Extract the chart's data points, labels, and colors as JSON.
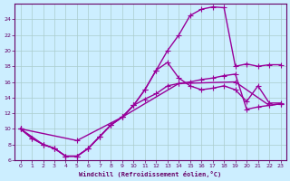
{
  "xlabel": "Windchill (Refroidissement éolien,°C)",
  "bg_color": "#cceeff",
  "line_color": "#990099",
  "grid_color": "#aacccc",
  "axis_color": "#660066",
  "xlim": [
    -0.5,
    23.5
  ],
  "ylim": [
    6,
    26
  ],
  "yticks": [
    6,
    8,
    10,
    12,
    14,
    16,
    18,
    20,
    22,
    24
  ],
  "xticks": [
    0,
    1,
    2,
    3,
    4,
    5,
    6,
    7,
    8,
    9,
    10,
    11,
    12,
    13,
    14,
    15,
    16,
    17,
    18,
    19,
    20,
    21,
    22,
    23
  ],
  "line1_x": [
    0,
    1,
    2,
    3,
    4,
    5,
    6,
    7,
    8,
    9,
    10,
    11,
    12,
    13,
    14,
    15,
    16,
    17,
    18,
    19,
    20,
    21,
    22,
    23
  ],
  "line1_y": [
    10.0,
    8.8,
    8.0,
    7.5,
    6.5,
    6.5,
    7.5,
    9.0,
    10.5,
    11.5,
    13.0,
    15.0,
    17.5,
    20.0,
    22.0,
    24.5,
    25.3,
    25.6,
    25.5,
    18.0,
    18.3,
    18.0,
    18.2,
    18.2
  ],
  "line2_x": [
    0,
    1,
    2,
    3,
    4,
    5,
    6,
    7,
    8,
    9,
    10,
    11,
    12,
    13,
    14,
    15,
    16,
    17,
    18,
    19,
    20,
    21,
    22,
    23
  ],
  "line2_y": [
    10.0,
    8.8,
    8.0,
    7.5,
    6.5,
    6.5,
    7.5,
    9.0,
    10.5,
    11.5,
    13.0,
    15.0,
    17.5,
    18.5,
    16.5,
    15.5,
    15.0,
    15.2,
    15.5,
    15.0,
    13.5,
    15.5,
    13.3,
    13.3
  ],
  "line3_x": [
    0,
    2,
    3,
    4,
    5,
    6,
    7,
    8,
    9,
    10,
    11,
    12,
    13,
    14,
    15,
    16,
    17,
    18,
    19,
    20,
    21,
    22,
    23
  ],
  "line3_y": [
    10.0,
    8.0,
    7.5,
    6.5,
    6.5,
    7.5,
    9.0,
    10.5,
    11.5,
    13.0,
    13.8,
    14.5,
    15.5,
    15.8,
    16.0,
    16.3,
    16.5,
    16.8,
    17.0,
    12.5,
    12.8,
    13.0,
    13.2
  ],
  "line4_x": [
    0,
    5,
    9,
    14,
    19,
    22,
    23
  ],
  "line4_y": [
    10.0,
    8.5,
    11.5,
    15.8,
    16.0,
    13.0,
    13.2
  ],
  "markersize": 3,
  "linewidth": 1.0
}
